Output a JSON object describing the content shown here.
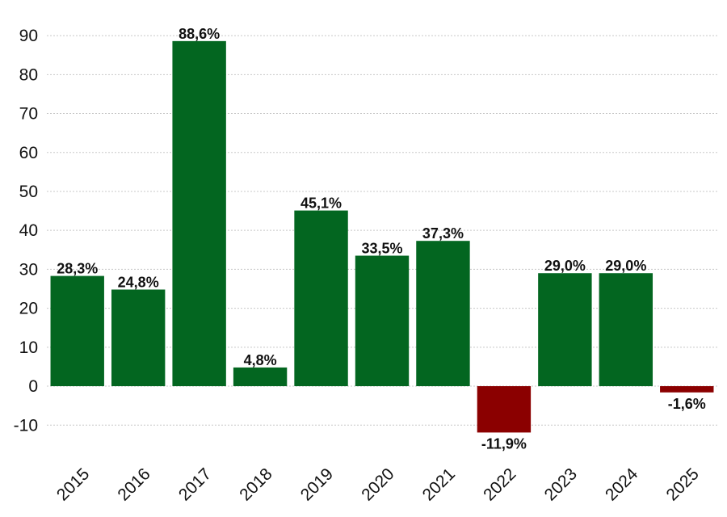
{
  "chart_data": {
    "type": "bar",
    "categories": [
      "2015",
      "2016",
      "2017",
      "2018",
      "2019",
      "2020",
      "2021",
      "2022",
      "2023",
      "2024",
      "2025"
    ],
    "values": [
      28.3,
      24.8,
      88.6,
      4.8,
      45.1,
      33.5,
      37.3,
      -11.9,
      29.0,
      29.0,
      -1.6
    ],
    "data_labels": [
      "28,3%",
      "24,8%",
      "88,6%",
      "4,8%",
      "45,1%",
      "33,5%",
      "37,3%",
      "-11,9%",
      "29,0%",
      "29,0%",
      "-1,6%"
    ],
    "yticks": [
      -10,
      0,
      10,
      20,
      30,
      40,
      50,
      60,
      70,
      80,
      90
    ],
    "ylim": [
      -17,
      95
    ],
    "grid": true,
    "title": "",
    "xlabel": "",
    "ylabel": "",
    "colors": {
      "positive": "#036620",
      "negative": "#8b0000"
    }
  }
}
